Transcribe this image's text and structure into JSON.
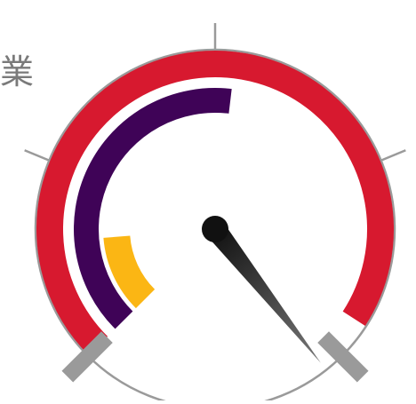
{
  "gauge": {
    "side_label": "業",
    "colors": {
      "outline": "#9a9a9a",
      "outer_band": "#d7192f",
      "middle_band": "#3f0357",
      "inner_band": "#fbb614",
      "needle": "#111111",
      "needle_tip": "#777777",
      "end_marker": "#9a9a9a"
    },
    "scale": {
      "min": 0,
      "max": 100,
      "major_ticks": [
        0,
        25,
        50,
        75,
        100
      ]
    },
    "bands": [
      {
        "name": "outer",
        "from": 0,
        "to": 95.5,
        "color_key": "outer_band"
      },
      {
        "name": "middle",
        "from": 0,
        "to": 52.5,
        "color_key": "middle_band"
      },
      {
        "name": "inner",
        "from": 0,
        "to": 15,
        "color_key": "inner_band"
      }
    ],
    "needle_value": 102.5,
    "end_markers": [
      "start-marker",
      "end-marker"
    ]
  }
}
